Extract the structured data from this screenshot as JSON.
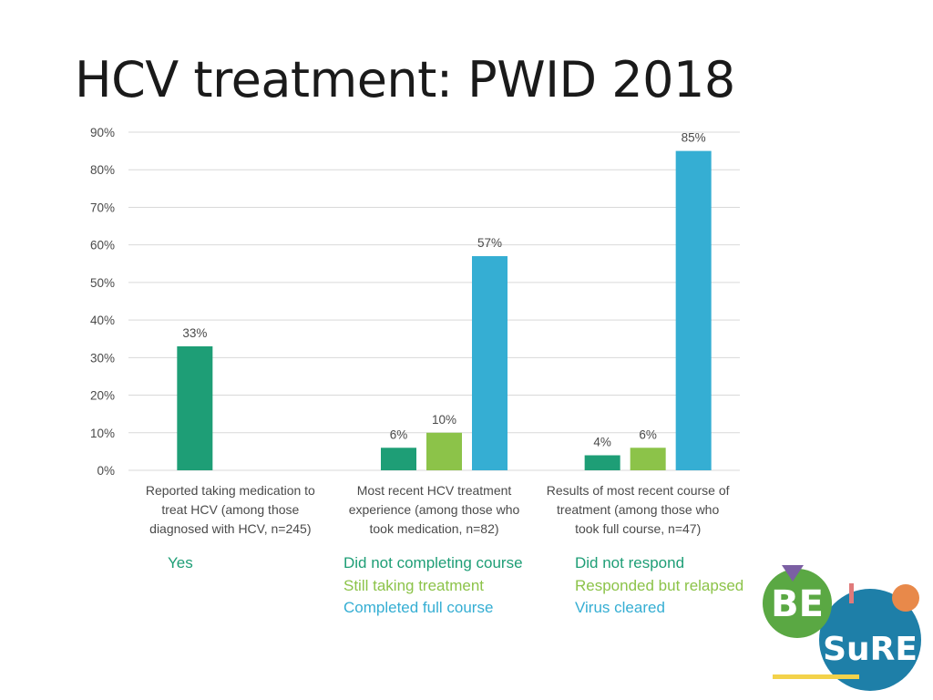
{
  "slide": {
    "title": "HCV treatment: PWID 2018"
  },
  "colors": {
    "dark_green": "#1e9e76",
    "light_green": "#8cc349",
    "blue": "#35aed3",
    "axis_text": "#4a4a4a",
    "gridline": "#d9d9d9"
  },
  "chart_data": {
    "type": "bar",
    "title": "",
    "xlabel": "",
    "ylabel": "",
    "ylim": [
      0,
      90
    ],
    "y_ticks": [
      "0%",
      "10%",
      "20%",
      "30%",
      "40%",
      "50%",
      "60%",
      "70%",
      "80%",
      "90%"
    ],
    "grid": true,
    "legend": "below",
    "groups": [
      {
        "category": "Reported taking medication to treat HCV (among those diagnosed with HCV, n=245)",
        "category_lines": [
          "Reported taking medication to",
          "treat HCV (among those",
          "diagnosed with HCV, n=245)"
        ],
        "bars": [
          {
            "name": "Yes",
            "value": 33,
            "label": "33%",
            "color": "#1e9e76"
          }
        ]
      },
      {
        "category": "Most recent HCV treatment experience (among those who took medication, n=82)",
        "category_lines": [
          "Most recent HCV treatment",
          "experience (among those who",
          "took medication, n=82)"
        ],
        "bars": [
          {
            "name": "Did not completing course",
            "value": 6,
            "label": "6%",
            "color": "#1e9e76"
          },
          {
            "name": "Still taking treatment",
            "value": 10,
            "label": "10%",
            "color": "#8cc349"
          },
          {
            "name": "Completed full course",
            "value": 57,
            "label": "57%",
            "color": "#35aed3"
          }
        ]
      },
      {
        "category": "Results of most recent course of treatment (among those who took full course, n=47)",
        "category_lines": [
          "Results of most recent course of",
          "treatment (among those who",
          "took full course, n=47)"
        ],
        "bars": [
          {
            "name": "Did not respond",
            "value": 4,
            "label": "4%",
            "color": "#1e9e76"
          },
          {
            "name": "Responded but relapsed",
            "value": 6,
            "label": "6%",
            "color": "#8cc349"
          },
          {
            "name": "Virus cleared",
            "value": 85,
            "label": "85%",
            "color": "#35aed3"
          }
        ]
      }
    ]
  },
  "legend": {
    "group1": [
      {
        "text": "Yes",
        "color": "#1e9e76"
      }
    ],
    "group2": [
      {
        "text": "Did not completing course",
        "color": "#1e9e76"
      },
      {
        "text": "Still taking treatment",
        "color": "#8cc349"
      },
      {
        "text": "Completed full course",
        "color": "#35aed3"
      }
    ],
    "group3": [
      {
        "text": "Did not respond",
        "color": "#1e9e76"
      },
      {
        "text": "Responded but relapsed",
        "color": "#8cc349"
      },
      {
        "text": "Virus cleared",
        "color": "#35aed3"
      }
    ]
  },
  "logo": {
    "text_top": "BE",
    "text_bottom": "SuRE",
    "colors": {
      "green": "#5aa843",
      "blue": "#1e7fa8",
      "orange": "#e8894a",
      "purple": "#7b5fa3",
      "yellow": "#f3d24a",
      "pink": "#e07a7a"
    }
  }
}
